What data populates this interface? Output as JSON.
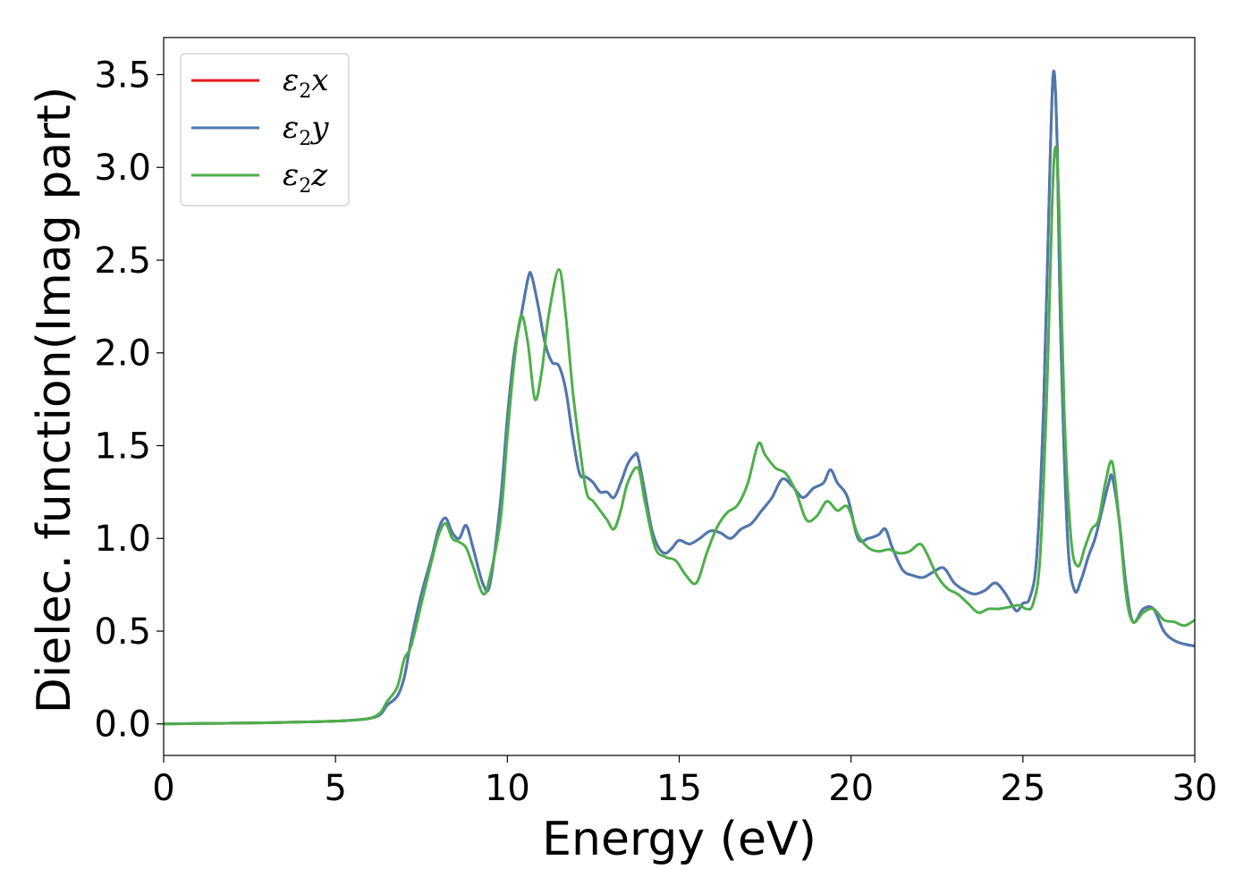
{
  "chart_data": {
    "type": "line",
    "xlabel": "Energy (eV)",
    "ylabel": "Dielec. function(Imag part)",
    "xlim": [
      0,
      30
    ],
    "ylim": [
      -0.17,
      3.7
    ],
    "xticks": [
      0,
      5,
      10,
      15,
      20,
      25,
      30
    ],
    "xtick_labels": [
      "0",
      "5",
      "10",
      "15",
      "20",
      "25",
      "30"
    ],
    "yticks": [
      0.0,
      0.5,
      1.0,
      1.5,
      2.0,
      2.5,
      3.0,
      3.5
    ],
    "ytick_labels": [
      "0.0",
      "0.5",
      "1.0",
      "1.5",
      "2.0",
      "2.5",
      "3.0",
      "3.5"
    ],
    "grid": false,
    "legend_position": "top-left",
    "series": [
      {
        "name": "ε2x",
        "label_main": "ε",
        "label_sub": "2",
        "label_tail": "x",
        "color": "#e41a1c",
        "x": [
          0,
          1,
          2,
          3,
          4,
          5,
          5.5,
          6,
          6.3,
          6.5,
          6.8,
          7.0,
          7.2,
          7.5,
          7.8,
          8.0,
          8.2,
          8.4,
          8.6,
          8.8,
          9.0,
          9.3,
          9.5,
          9.8,
          10.0,
          10.2,
          10.4,
          10.6,
          10.7,
          10.9,
          11.1,
          11.3,
          11.5,
          11.7,
          11.9,
          12.1,
          12.3,
          12.5,
          12.7,
          12.9,
          13.1,
          13.3,
          13.5,
          13.7,
          13.8,
          14.0,
          14.2,
          14.4,
          14.6,
          14.8,
          15.0,
          15.3,
          15.6,
          15.9,
          16.2,
          16.5,
          16.8,
          17.1,
          17.4,
          17.7,
          18.0,
          18.3,
          18.6,
          18.9,
          19.2,
          19.4,
          19.6,
          19.9,
          20.2,
          20.5,
          20.8,
          21.0,
          21.2,
          21.5,
          21.8,
          22.1,
          22.4,
          22.7,
          23.0,
          23.3,
          23.6,
          23.9,
          24.2,
          24.5,
          24.8,
          25.0,
          25.2,
          25.4,
          25.6,
          25.8,
          25.9,
          26.0,
          26.1,
          26.3,
          26.5,
          26.7,
          26.9,
          27.1,
          27.3,
          27.5,
          27.6,
          27.8,
          28.0,
          28.2,
          28.5,
          28.8,
          29.1,
          29.4,
          29.7,
          30.0
        ],
        "y": [
          0.0,
          0.002,
          0.004,
          0.006,
          0.01,
          0.015,
          0.02,
          0.03,
          0.05,
          0.1,
          0.15,
          0.25,
          0.45,
          0.7,
          0.9,
          1.05,
          1.11,
          1.03,
          1.0,
          1.07,
          0.95,
          0.75,
          0.76,
          1.2,
          1.65,
          2.0,
          2.2,
          2.4,
          2.42,
          2.25,
          2.05,
          1.95,
          1.93,
          1.8,
          1.55,
          1.35,
          1.33,
          1.3,
          1.25,
          1.25,
          1.22,
          1.3,
          1.4,
          1.45,
          1.44,
          1.25,
          1.05,
          0.95,
          0.92,
          0.95,
          0.99,
          0.97,
          1.0,
          1.04,
          1.03,
          1.0,
          1.05,
          1.08,
          1.15,
          1.22,
          1.32,
          1.28,
          1.22,
          1.27,
          1.3,
          1.37,
          1.3,
          1.22,
          1.0,
          1.0,
          1.02,
          1.05,
          0.95,
          0.83,
          0.8,
          0.79,
          0.82,
          0.84,
          0.76,
          0.72,
          0.7,
          0.72,
          0.76,
          0.7,
          0.61,
          0.65,
          0.68,
          0.9,
          1.7,
          3.1,
          3.52,
          3.1,
          2.1,
          1.0,
          0.72,
          0.78,
          0.9,
          1.0,
          1.15,
          1.3,
          1.33,
          1.1,
          0.75,
          0.55,
          0.62,
          0.62,
          0.5,
          0.45,
          0.43,
          0.42
        ]
      },
      {
        "name": "ε2y",
        "label_main": "ε",
        "label_sub": "2",
        "label_tail": "y",
        "color": "#4a7ab0",
        "x": [
          0,
          1,
          2,
          3,
          4,
          5,
          5.5,
          6,
          6.3,
          6.5,
          6.8,
          7.0,
          7.2,
          7.5,
          7.8,
          8.0,
          8.2,
          8.4,
          8.6,
          8.8,
          9.0,
          9.3,
          9.5,
          9.8,
          10.0,
          10.2,
          10.4,
          10.6,
          10.7,
          10.9,
          11.1,
          11.3,
          11.5,
          11.7,
          11.9,
          12.1,
          12.3,
          12.5,
          12.7,
          12.9,
          13.1,
          13.3,
          13.5,
          13.7,
          13.8,
          14.0,
          14.2,
          14.4,
          14.6,
          14.8,
          15.0,
          15.3,
          15.6,
          15.9,
          16.2,
          16.5,
          16.8,
          17.1,
          17.4,
          17.7,
          18.0,
          18.3,
          18.6,
          18.9,
          19.2,
          19.4,
          19.6,
          19.9,
          20.2,
          20.5,
          20.8,
          21.0,
          21.2,
          21.5,
          21.8,
          22.1,
          22.4,
          22.7,
          23.0,
          23.3,
          23.6,
          23.9,
          24.2,
          24.5,
          24.8,
          25.0,
          25.2,
          25.4,
          25.6,
          25.8,
          25.9,
          26.0,
          26.1,
          26.3,
          26.5,
          26.7,
          26.9,
          27.1,
          27.3,
          27.5,
          27.6,
          27.8,
          28.0,
          28.2,
          28.5,
          28.8,
          29.1,
          29.4,
          29.7,
          30.0
        ],
        "y": [
          0.0,
          0.002,
          0.004,
          0.006,
          0.01,
          0.015,
          0.02,
          0.03,
          0.05,
          0.1,
          0.15,
          0.25,
          0.45,
          0.7,
          0.9,
          1.05,
          1.11,
          1.03,
          1.0,
          1.07,
          0.95,
          0.75,
          0.76,
          1.2,
          1.65,
          2.0,
          2.2,
          2.4,
          2.42,
          2.25,
          2.05,
          1.95,
          1.93,
          1.8,
          1.55,
          1.35,
          1.33,
          1.3,
          1.25,
          1.25,
          1.22,
          1.3,
          1.4,
          1.45,
          1.44,
          1.25,
          1.05,
          0.95,
          0.92,
          0.95,
          0.99,
          0.97,
          1.0,
          1.04,
          1.03,
          1.0,
          1.05,
          1.08,
          1.15,
          1.22,
          1.32,
          1.28,
          1.22,
          1.27,
          1.3,
          1.37,
          1.3,
          1.22,
          1.0,
          1.0,
          1.02,
          1.05,
          0.95,
          0.83,
          0.8,
          0.79,
          0.82,
          0.84,
          0.76,
          0.72,
          0.7,
          0.72,
          0.76,
          0.7,
          0.61,
          0.65,
          0.68,
          0.9,
          1.7,
          3.1,
          3.52,
          3.1,
          2.1,
          1.0,
          0.72,
          0.78,
          0.9,
          1.0,
          1.15,
          1.3,
          1.33,
          1.1,
          0.75,
          0.55,
          0.62,
          0.62,
          0.5,
          0.45,
          0.43,
          0.42
        ]
      },
      {
        "name": "ε2z",
        "label_main": "ε",
        "label_sub": "2",
        "label_tail": "z",
        "color": "#4daf4a",
        "x": [
          0,
          1,
          2,
          3,
          4,
          5,
          5.5,
          6,
          6.3,
          6.5,
          6.8,
          7.0,
          7.2,
          7.5,
          7.8,
          8.0,
          8.2,
          8.4,
          8.6,
          8.8,
          9.0,
          9.3,
          9.5,
          9.8,
          10.0,
          10.2,
          10.4,
          10.6,
          10.8,
          11.0,
          11.2,
          11.5,
          11.7,
          11.9,
          12.1,
          12.3,
          12.5,
          12.7,
          12.9,
          13.1,
          13.3,
          13.5,
          13.8,
          14.0,
          14.3,
          14.6,
          14.9,
          15.2,
          15.5,
          15.8,
          16.1,
          16.4,
          16.7,
          17.0,
          17.3,
          17.5,
          17.8,
          18.1,
          18.4,
          18.7,
          19.0,
          19.3,
          19.6,
          19.9,
          20.2,
          20.5,
          20.8,
          21.1,
          21.4,
          21.7,
          22.0,
          22.2,
          22.5,
          22.8,
          23.1,
          23.4,
          23.7,
          24.0,
          24.3,
          24.6,
          24.9,
          25.1,
          25.3,
          25.5,
          25.7,
          25.85,
          25.95,
          26.05,
          26.2,
          26.4,
          26.6,
          26.8,
          27.0,
          27.2,
          27.4,
          27.6,
          27.8,
          28.0,
          28.2,
          28.5,
          28.8,
          29.1,
          29.4,
          29.7,
          30.0
        ],
        "y": [
          0.0,
          0.002,
          0.004,
          0.006,
          0.01,
          0.015,
          0.02,
          0.03,
          0.06,
          0.12,
          0.2,
          0.35,
          0.42,
          0.65,
          0.88,
          1.02,
          1.08,
          1.0,
          0.98,
          0.95,
          0.85,
          0.7,
          0.8,
          1.1,
          1.55,
          1.95,
          2.2,
          2.05,
          1.75,
          1.9,
          2.2,
          2.45,
          2.2,
          1.8,
          1.5,
          1.25,
          1.2,
          1.15,
          1.1,
          1.05,
          1.15,
          1.3,
          1.38,
          1.2,
          0.95,
          0.9,
          0.88,
          0.8,
          0.76,
          0.92,
          1.06,
          1.14,
          1.18,
          1.3,
          1.51,
          1.45,
          1.38,
          1.35,
          1.25,
          1.1,
          1.12,
          1.2,
          1.15,
          1.17,
          1.02,
          0.95,
          0.93,
          0.94,
          0.92,
          0.93,
          0.97,
          0.92,
          0.8,
          0.73,
          0.7,
          0.65,
          0.6,
          0.62,
          0.62,
          0.63,
          0.64,
          0.62,
          0.65,
          0.9,
          1.8,
          2.8,
          3.11,
          2.8,
          1.7,
          1.0,
          0.85,
          0.95,
          1.05,
          1.1,
          1.3,
          1.41,
          1.1,
          0.7,
          0.55,
          0.6,
          0.62,
          0.56,
          0.55,
          0.53,
          0.56
        ]
      }
    ]
  }
}
